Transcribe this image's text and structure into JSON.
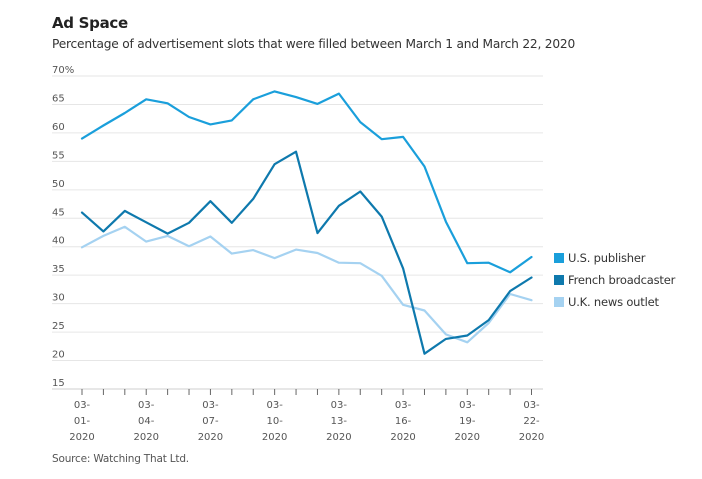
{
  "chart_data": {
    "type": "line",
    "title": "Ad Space",
    "subtitle": "Percentage of advertisement slots that were filled between March 1 and March 22, 2020",
    "source": "Source: Watching That Ltd.",
    "xlabel": "",
    "ylabel": "",
    "ylim": [
      15,
      70
    ],
    "yticks": [
      70,
      65,
      60,
      55,
      50,
      45,
      40,
      35,
      30,
      25,
      20,
      15
    ],
    "ytick_labels": [
      "70%",
      "65",
      "60",
      "55",
      "50",
      "45",
      "40",
      "35",
      "30",
      "25",
      "20",
      "15"
    ],
    "grid": true,
    "legend_position": "right",
    "x": [
      "03-01-2020",
      "03-02-2020",
      "03-03-2020",
      "03-04-2020",
      "03-05-2020",
      "03-06-2020",
      "03-07-2020",
      "03-08-2020",
      "03-09-2020",
      "03-10-2020",
      "03-11-2020",
      "03-12-2020",
      "03-13-2020",
      "03-14-2020",
      "03-15-2020",
      "03-16-2020",
      "03-17-2020",
      "03-18-2020",
      "03-19-2020",
      "03-20-2020",
      "03-21-2020",
      "03-22-2020"
    ],
    "xtick_labels": [
      {
        "index": 0,
        "lines": [
          "03-",
          "01-",
          "2020"
        ]
      },
      {
        "index": 3,
        "lines": [
          "03-",
          "04-",
          "2020"
        ]
      },
      {
        "index": 6,
        "lines": [
          "03-",
          "07-",
          "2020"
        ]
      },
      {
        "index": 9,
        "lines": [
          "03-",
          "10-",
          "2020"
        ]
      },
      {
        "index": 12,
        "lines": [
          "03-",
          "13-",
          "2020"
        ]
      },
      {
        "index": 15,
        "lines": [
          "03-",
          "16-",
          "2020"
        ]
      },
      {
        "index": 18,
        "lines": [
          "03-",
          "19-",
          "2020"
        ]
      },
      {
        "index": 21,
        "lines": [
          "03-",
          "22-",
          "2020"
        ]
      }
    ],
    "series": [
      {
        "name": "U.S. publisher",
        "color": "#1a9fdb",
        "values": [
          59.0,
          61.3,
          63.5,
          65.9,
          65.2,
          62.8,
          61.5,
          62.2,
          65.9,
          67.3,
          66.3,
          65.1,
          66.9,
          61.9,
          58.9,
          59.3,
          54.1,
          44.4,
          37.1,
          37.2,
          35.5,
          38.2
        ]
      },
      {
        "name": "French broadcaster",
        "color": "#0e79ad",
        "values": [
          46.0,
          42.7,
          46.3,
          44.3,
          42.3,
          44.2,
          48.0,
          44.2,
          48.4,
          54.5,
          56.7,
          42.4,
          47.2,
          49.7,
          45.3,
          36.2,
          21.2,
          23.8,
          24.4,
          27.1,
          32.2,
          34.6
        ]
      },
      {
        "name": "U.K. news outlet",
        "color": "#a5d2f1",
        "values": [
          39.9,
          41.9,
          43.5,
          40.9,
          41.9,
          40.1,
          41.8,
          38.8,
          39.4,
          38.0,
          39.5,
          38.9,
          37.2,
          37.1,
          34.9,
          29.8,
          28.8,
          24.6,
          23.2,
          26.6,
          31.7,
          30.6
        ]
      }
    ]
  }
}
